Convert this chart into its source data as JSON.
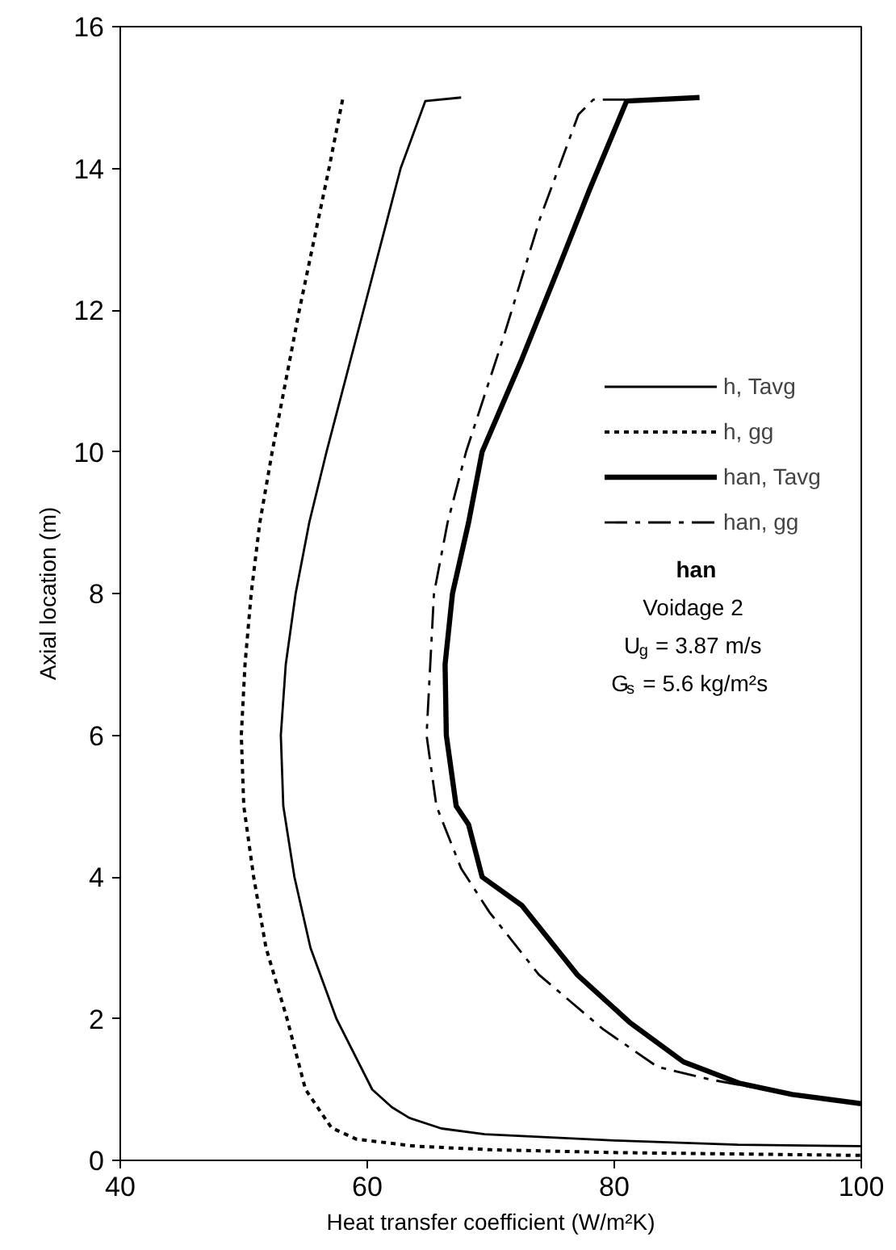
{
  "chart_data": {
    "type": "line",
    "xlabel": "Heat transfer coefficient (W/m²K)",
    "ylabel": "Axial location (m)",
    "xlim": [
      40,
      100
    ],
    "xticks": [
      40,
      60,
      80,
      100
    ],
    "ylim": [
      0,
      16
    ],
    "yticks": [
      0,
      2,
      4,
      6,
      8,
      10,
      12,
      14,
      16
    ],
    "grid": false,
    "legend": "right",
    "series": [
      {
        "name": "h, Tavg",
        "color": "#000000",
        "line_style": "solid",
        "x": [
          67.6,
          64.7,
          62.7,
          59.7,
          56.7,
          55.3,
          54.2,
          53.4,
          53.0,
          53.2,
          54.1,
          55.4,
          57.5,
          60.4,
          62.0,
          63.4,
          66.0,
          69.5,
          80,
          90,
          100
        ],
        "values": [
          15.0,
          14.95,
          14,
          12,
          10,
          9,
          8,
          7,
          6,
          5,
          4,
          3,
          2,
          1,
          0.75,
          0.6,
          0.45,
          0.37,
          0.28,
          0.22,
          0.2
        ]
      },
      {
        "name": "h, gg",
        "color": "#000000",
        "line_style": "dotted",
        "x": [
          58.0,
          56.9,
          54.5,
          52.3,
          51.3,
          50.6,
          50.1,
          49.8,
          50.0,
          50.8,
          51.8,
          53.5,
          55.0,
          57.1,
          59.1,
          63.9,
          70,
          80,
          90,
          100
        ],
        "values": [
          14.97,
          14,
          12,
          10,
          9,
          8,
          7,
          6,
          5,
          4,
          3,
          2,
          1,
          0.46,
          0.3,
          0.2,
          0.15,
          0.11,
          0.09,
          0.07
        ]
      },
      {
        "name": "han, Tavg",
        "color": "#000000",
        "line_style": "solid",
        "x": [
          86.9,
          81.0,
          78.0,
          75.5,
          72.5,
          69.3,
          68.2,
          66.9,
          66.3,
          66.4,
          67.2,
          68.2,
          69.3,
          72.5,
          77.0,
          81.3,
          85.6,
          90.1,
          94.4,
          100
        ],
        "values": [
          15.0,
          14.95,
          13.7,
          12.6,
          11.3,
          10,
          9,
          8,
          7,
          6,
          5,
          4.74,
          4.0,
          3.6,
          2.62,
          1.94,
          1.39,
          1.09,
          0.93,
          0.8
        ]
      },
      {
        "name": "han, gg",
        "color": "#000000",
        "line_style": "dashed",
        "x": [
          80.9,
          78.3,
          77.1,
          74.0,
          71.0,
          68.0,
          66.5,
          65.4,
          65.1,
          64.8,
          65.6,
          67.6,
          69.9,
          73.9,
          79.1,
          83.5,
          87.8,
          94.4,
          100
        ],
        "values": [
          14.97,
          14.97,
          14.76,
          13.3,
          11.6,
          10,
          9,
          8,
          7,
          6,
          5,
          4.12,
          3.5,
          2.62,
          1.85,
          1.32,
          1.14,
          0.93,
          0.8
        ]
      }
    ],
    "annotations": [
      "han",
      "Voidage 2",
      "U$_{g}$ = 3.87 m/s",
      "G$_{s}$ = 5.6 kg/m²s"
    ]
  }
}
